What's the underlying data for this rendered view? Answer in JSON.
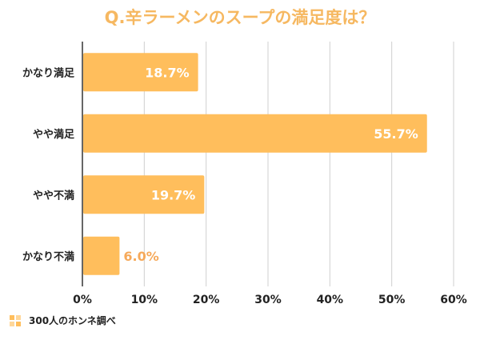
{
  "chart_data": {
    "type": "bar",
    "orientation": "horizontal",
    "title": "Q.辛ラーメンのスープの満足度は？",
    "categories": [
      "かなり満足",
      "やや満足",
      "やや不満",
      "かなり不満"
    ],
    "values": [
      18.7,
      55.7,
      19.7,
      6.0
    ],
    "value_labels": [
      "18.7%",
      "55.7%",
      "19.7%",
      "6.0%"
    ],
    "xlim": [
      0,
      60
    ],
    "ticks": [
      "0%",
      "10%",
      "20%",
      "30%",
      "40%",
      "50%",
      "60%"
    ],
    "legend": "300人のホンネ調べ",
    "grid": true,
    "bar_color": "#FFBE5C",
    "label_inside_color": "#FFFFFF",
    "label_outside_color": "#F6A95A"
  }
}
